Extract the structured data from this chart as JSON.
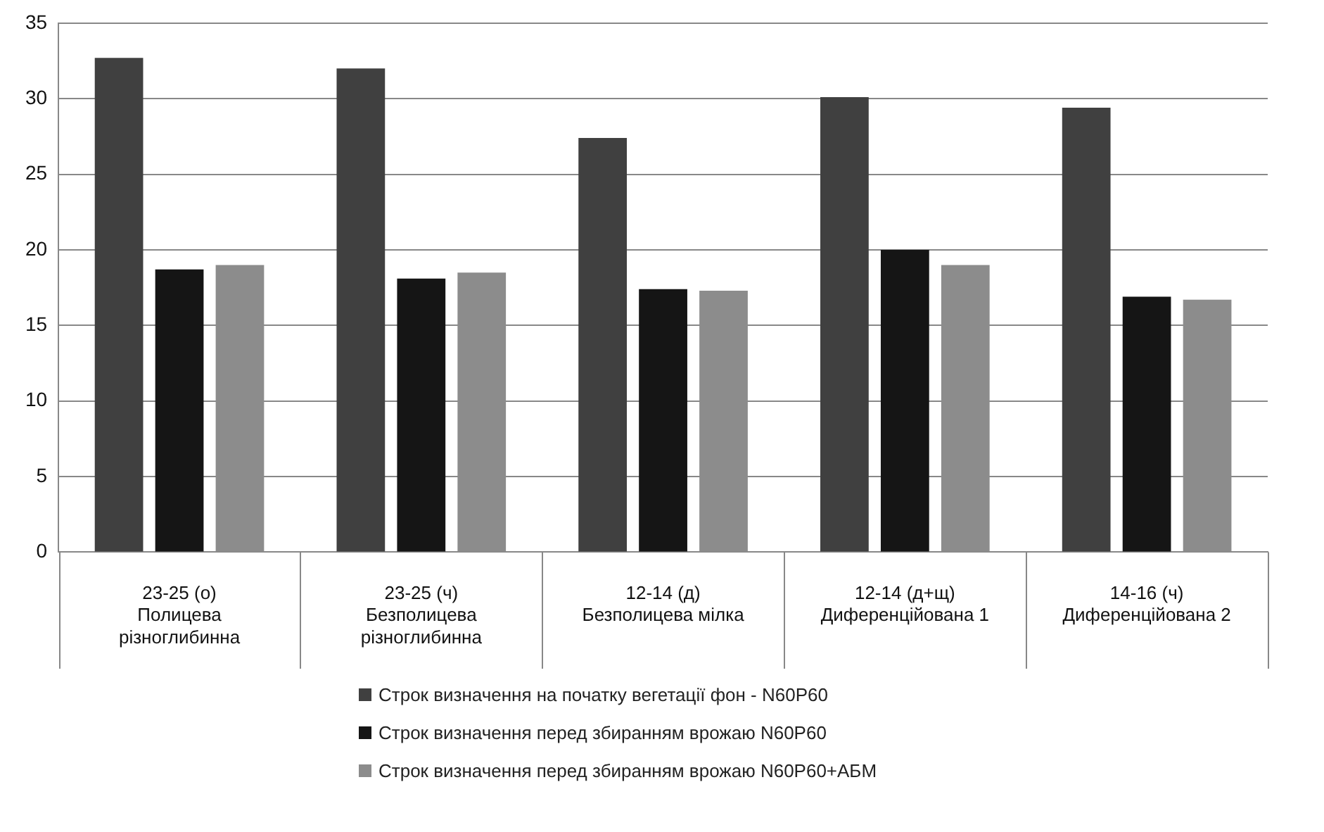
{
  "chart_data": {
    "type": "bar",
    "categories": [
      "23-25 (о)\nПолицева\nрізноглибинна",
      "23-25 (ч)\nБезполицева\nрізноглибинна",
      "12-14 (д)\nБезполицева мілка",
      "12-14 (д+щ)\nДиференційована 1",
      "14-16 (ч)\nДиференційована 2"
    ],
    "series": [
      {
        "name": "Строк визначення на початку вегетації фон - N60P60",
        "color": "#404040",
        "values": [
          32.7,
          32.0,
          27.4,
          30.1,
          29.4
        ]
      },
      {
        "name": "Строк визначення перед збиранням врожаю N60P60",
        "color": "#151515",
        "values": [
          18.7,
          18.1,
          17.4,
          20.0,
          16.9
        ]
      },
      {
        "name": "Строк визначення перед збиранням врожаю N60P60+АБМ",
        "color": "#8c8c8c",
        "values": [
          19.0,
          18.5,
          17.3,
          19.0,
          16.7
        ]
      }
    ],
    "ylim": [
      0,
      35
    ],
    "yticks": [
      0,
      5,
      10,
      15,
      20,
      25,
      30,
      35
    ],
    "grid": "y",
    "legend": "bottom"
  }
}
